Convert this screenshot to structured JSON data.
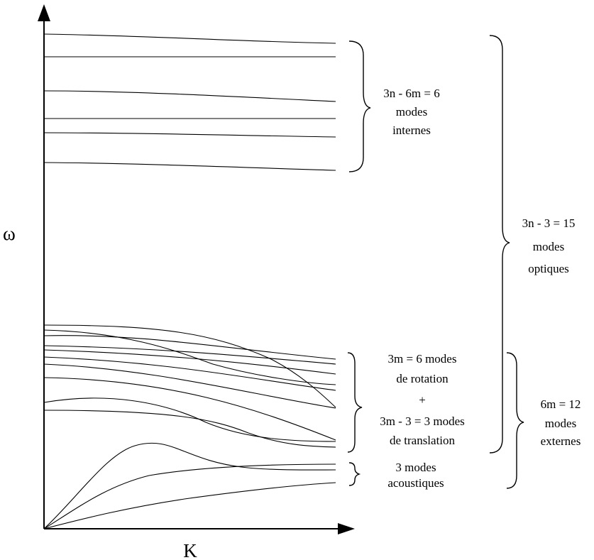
{
  "axes": {
    "y_label": "ω",
    "x_label": "K"
  },
  "groups": {
    "internes": {
      "lines": [
        "3n - 6m = 6",
        "modes",
        "internes"
      ]
    },
    "optiques": {
      "lines": [
        "3n - 3 = 15",
        "modes",
        "optiques"
      ]
    },
    "rotation_translation": {
      "lines": [
        "3m = 6 modes",
        "de rotation",
        "+",
        "3m - 3 = 3 modes",
        "de translation"
      ]
    },
    "externes": {
      "lines": [
        "6m = 12",
        "modes",
        "externes"
      ]
    },
    "acoustiques": {
      "lines": [
        "3 modes",
        "acoustiques"
      ]
    }
  },
  "mode_counts": {
    "internal": 6,
    "optical": 15,
    "external": 12,
    "acoustic": 3
  }
}
